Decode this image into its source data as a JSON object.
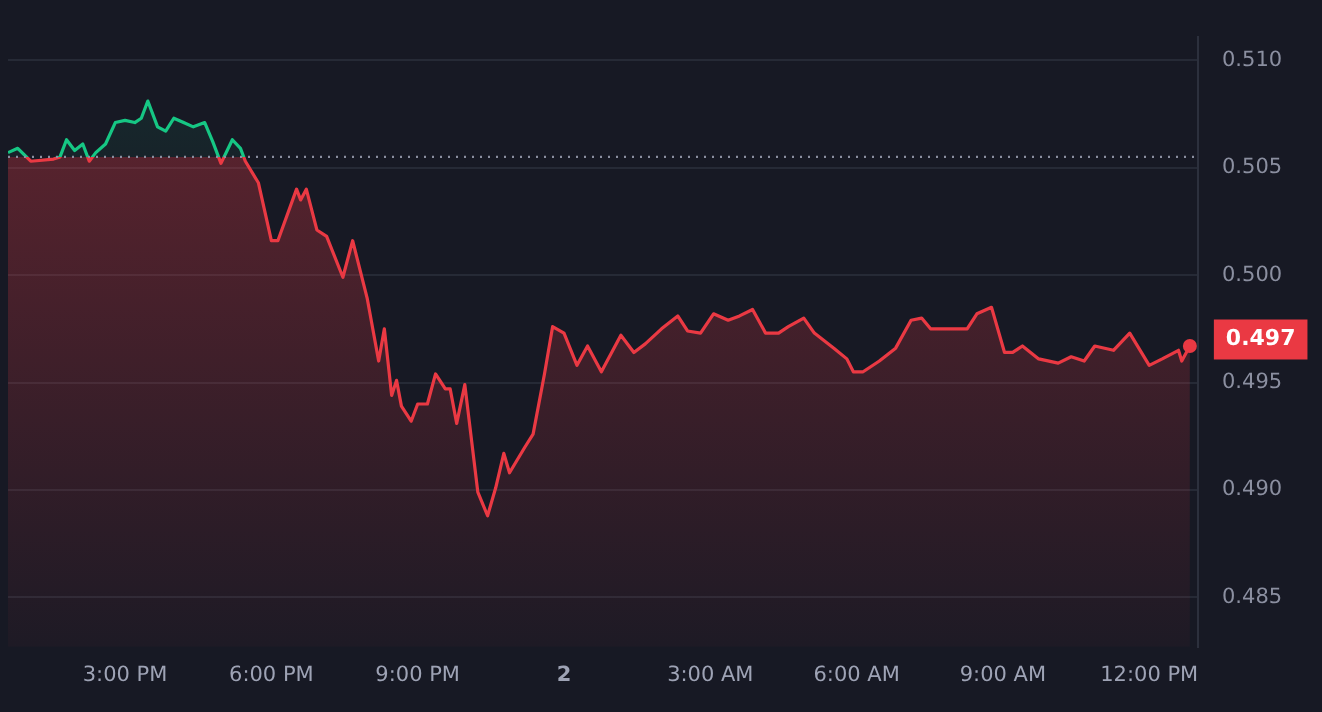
{
  "chart_data": {
    "type": "area",
    "x": [
      "--01-01T12:36",
      "--01-01T12:48",
      "--01-01T13:04",
      "--01-01T13:32",
      "--01-01T13:40",
      "--01-01T13:48",
      "--01-01T13:58",
      "--01-01T14:08",
      "--01-01T14:16",
      "--01-01T14:24",
      "--01-01T14:36",
      "--01-01T14:48",
      "--01-01T15:00",
      "--01-01T15:12",
      "--01-01T15:20",
      "--01-01T15:28",
      "--01-01T15:40",
      "--01-01T15:50",
      "--01-01T16:00",
      "--01-01T16:12",
      "--01-01T16:24",
      "--01-01T16:38",
      "--01-01T16:48",
      "--01-01T16:58",
      "--01-01T17:12",
      "--01-01T17:22",
      "--01-01T17:28",
      "--01-01T17:44",
      "--01-01T18:00",
      "--01-01T18:08",
      "--01-01T18:31",
      "--01-01T18:36",
      "--01-01T18:43",
      "--01-01T18:56",
      "--01-01T19:08",
      "--01-01T19:28",
      "--01-01T19:40",
      "--01-01T19:58",
      "--01-01T20:12",
      "--01-01T20:19",
      "--01-01T20:28",
      "--01-01T20:34",
      "--01-01T20:40",
      "--01-01T20:52",
      "--01-01T21:00",
      "--01-01T21:12",
      "--01-01T21:22",
      "--01-01T21:34",
      "--01-01T21:40",
      "--01-01T21:48",
      "--01-01T21:58",
      "--01-01T22:14",
      "--01-01T22:26",
      "--01-01T22:36",
      "--01-01T22:46",
      "--01-01T22:53",
      "--01-01T23:12",
      "--01-01T23:22",
      "--01-01T23:36",
      "--01-01T23:46",
      "--01-02T00:00",
      "--01-02T00:16",
      "--01-02T00:29",
      "--01-02T00:46",
      "--01-02T01:10",
      "--01-02T01:26",
      "--01-02T01:40",
      "--01-02T02:00",
      "--01-02T02:20",
      "--01-02T02:32",
      "--01-02T02:48",
      "--01-02T03:04",
      "--01-02T03:22",
      "--01-02T03:36",
      "--01-02T03:52",
      "--01-02T04:08",
      "--01-02T04:24",
      "--01-02T04:36",
      "--01-02T04:55",
      "--01-02T05:08",
      "--01-02T05:32",
      "--01-02T05:48",
      "--01-02T05:56",
      "--01-02T06:08",
      "--01-02T06:28",
      "--01-02T06:48",
      "--01-02T07:07",
      "--01-02T07:20",
      "--01-02T07:31",
      "--01-02T07:44",
      "--01-02T08:16",
      "--01-02T08:28",
      "--01-02T08:46",
      "--01-02T09:02",
      "--01-02T09:12",
      "--01-02T09:24",
      "--01-02T09:44",
      "--01-02T10:08",
      "--01-02T10:24",
      "--01-02T10:40",
      "--01-02T10:53",
      "--01-02T11:16",
      "--01-02T11:36",
      "--01-02T12:00",
      "--01-02T12:16",
      "--01-02T12:36",
      "--01-02T12:40",
      "--01-02T12:50"
    ],
    "series": [
      {
        "color": "#ea3943",
        "values": [
          0.5057,
          0.5059,
          0.5053,
          0.5054,
          0.5055,
          0.5063,
          0.5058,
          0.5061,
          0.5053,
          0.5057,
          0.5061,
          0.5071,
          0.5072,
          0.5071,
          0.5073,
          0.5081,
          0.5069,
          0.5067,
          0.5073,
          0.5071,
          0.5069,
          0.5071,
          0.5062,
          0.5052,
          0.5063,
          0.5059,
          0.5053,
          0.5043,
          0.5016,
          0.5016,
          0.504,
          0.5035,
          0.504,
          0.5021,
          0.5018,
          0.4999,
          0.5016,
          0.4989,
          0.496,
          0.4975,
          0.4944,
          0.4951,
          0.4939,
          0.4932,
          0.494,
          0.494,
          0.4954,
          0.4947,
          0.4947,
          0.4931,
          0.4949,
          0.4899,
          0.4888,
          0.4901,
          0.4917,
          0.4908,
          0.492,
          0.4926,
          0.4954,
          0.4976,
          0.4973,
          0.4958,
          0.4967,
          0.4955,
          0.4972,
          0.4964,
          0.4968,
          0.4975,
          0.4981,
          0.4974,
          0.4973,
          0.4982,
          0.4979,
          0.4981,
          0.4984,
          0.4973,
          0.4973,
          0.4976,
          0.498,
          0.4973,
          0.4966,
          0.4961,
          0.4955,
          0.4955,
          0.496,
          0.4966,
          0.4979,
          0.498,
          0.4975,
          0.4975,
          0.4975,
          0.4982,
          0.4985,
          0.4964,
          0.4964,
          0.4967,
          0.4961,
          0.4959,
          0.4962,
          0.496,
          0.4967,
          0.4965,
          0.4973,
          0.4958,
          0.4961,
          0.4965,
          0.496,
          0.4967
        ],
        "colors": [
          "#16c784",
          "#16c784",
          "#ea3943",
          "#ea3943",
          "#ea3943",
          "#16c784",
          "#16c784",
          "#16c784",
          "#ea3943",
          "#16c784",
          "#16c784",
          "#16c784",
          "#16c784",
          "#16c784",
          "#16c784",
          "#16c784",
          "#16c784",
          "#16c784",
          "#16c784",
          "#16c784",
          "#16c784",
          "#16c784",
          "#16c784",
          "#ea3943",
          "#16c784",
          "#16c784",
          "#ea3943",
          "#ea3943",
          "#ea3943",
          "#ea3943",
          "#ea3943",
          "#ea3943",
          "#ea3943",
          "#ea3943",
          "#ea3943",
          "#ea3943",
          "#ea3943",
          "#ea3943",
          "#ea3943",
          "#ea3943",
          "#ea3943",
          "#ea3943",
          "#ea3943",
          "#ea3943",
          "#ea3943",
          "#ea3943",
          "#ea3943",
          "#ea3943",
          "#ea3943",
          "#ea3943",
          "#ea3943",
          "#ea3943",
          "#ea3943",
          "#ea3943",
          "#ea3943",
          "#ea3943",
          "#ea3943",
          "#ea3943",
          "#ea3943",
          "#ea3943",
          "#ea3943",
          "#ea3943",
          "#ea3943",
          "#ea3943",
          "#ea3943",
          "#ea3943",
          "#ea3943",
          "#ea3943",
          "#ea3943",
          "#ea3943",
          "#ea3943",
          "#ea3943",
          "#ea3943",
          "#ea3943",
          "#ea3943",
          "#ea3943",
          "#ea3943",
          "#ea3943",
          "#ea3943",
          "#ea3943",
          "#ea3943",
          "#ea3943",
          "#ea3943",
          "#ea3943",
          "#ea3943",
          "#ea3943",
          "#ea3943",
          "#ea3943",
          "#ea3943",
          "#ea3943",
          "#ea3943",
          "#ea3943",
          "#ea3943",
          "#ea3943",
          "#ea3943",
          "#ea3943",
          "#ea3943",
          "#ea3943",
          "#ea3943",
          "#ea3943",
          "#ea3943",
          "#ea3943",
          "#ea3943",
          "#ea3943",
          "#ea3943",
          "#ea3943",
          "#ea3943",
          "#ea3943"
        ]
      }
    ],
    "xlim": [
      "--01-01T12:36",
      "--01-02T13:00"
    ],
    "xticks": [
      {
        "value": "--01-01T15:00",
        "label": "3:00 PM"
      },
      {
        "value": "--01-01T18:00",
        "label": "6:00 PM"
      },
      {
        "value": "--01-01T21:00",
        "label": "9:00 PM"
      },
      {
        "value": "--01-02T00:00",
        "label": "2"
      },
      {
        "value": "--01-02T03:00",
        "label": "3:00 AM"
      },
      {
        "value": "--01-02T06:00",
        "label": "6:00 AM"
      },
      {
        "value": "--01-02T09:00",
        "label": "9:00 AM"
      },
      {
        "value": "--01-02T12:00",
        "label": "12:00 PM"
      }
    ],
    "ylim": [
      0.4827,
      0.5111
    ],
    "yticks": [
      {
        "value": 0.485,
        "label": "0.485"
      },
      {
        "value": 0.49,
        "label": "0.490"
      },
      {
        "value": 0.495,
        "label": "0.495"
      },
      {
        "value": 0.5,
        "label": "0.500"
      },
      {
        "value": 0.505,
        "label": "0.505"
      },
      {
        "value": 0.51,
        "label": "0.510"
      }
    ],
    "ref_lines": [
      {
        "axis": "y",
        "value": 0.5055,
        "color": "#8b8fa0",
        "line_style": "dotted"
      }
    ],
    "annotations": [
      {
        "text": "0.497",
        "x": "--01-02T12:50",
        "y": 0.497
      }
    ],
    "grid": "y"
  }
}
